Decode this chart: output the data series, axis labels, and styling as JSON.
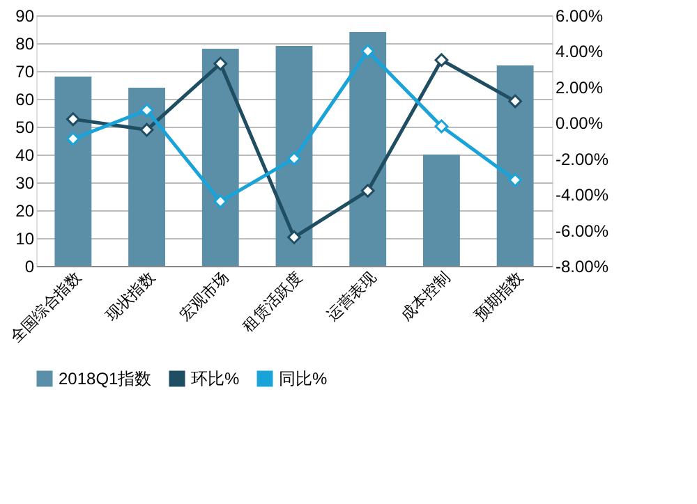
{
  "chart_data": {
    "type": "bar",
    "categories": [
      "全国综合指数",
      "现状指数",
      "宏观市场",
      "租赁活跃度",
      "运营表现",
      "成本控制",
      "预期指数"
    ],
    "series": [
      {
        "name": "2018Q1指数",
        "color": "#5b8fa8",
        "values": [
          68,
          64,
          78,
          79,
          84,
          40,
          72
        ]
      },
      {
        "name": "环比%",
        "type": "line",
        "axis": "y2",
        "color": "#1f4e62",
        "values": [
          0.2,
          -0.4,
          3.3,
          -6.4,
          -3.8,
          3.5,
          1.2
        ]
      },
      {
        "name": "同比%",
        "type": "line",
        "axis": "y2",
        "color": "#1aa3d9",
        "values": [
          -0.9,
          0.7,
          -4.4,
          -2.0,
          4.0,
          -0.2,
          -3.2
        ]
      }
    ],
    "ylim": [
      0,
      90
    ],
    "yticks": [
      0,
      10,
      20,
      30,
      40,
      50,
      60,
      70,
      80,
      90
    ],
    "y2lim": [
      -8,
      6
    ],
    "y2ticks": [
      {
        "value": -8,
        "label": "-8.00%"
      },
      {
        "value": -6,
        "label": "-6.00%"
      },
      {
        "value": -4,
        "label": "-4.00%"
      },
      {
        "value": -2,
        "label": "-2.00%"
      },
      {
        "value": 0,
        "label": "0.00%"
      },
      {
        "value": 2,
        "label": "2.00%"
      },
      {
        "value": 4,
        "label": "4.00%"
      },
      {
        "value": 6,
        "label": "6.00%"
      }
    ],
    "grid": "y",
    "legend": "bottom",
    "marker": "diamond",
    "line_style": "solid"
  }
}
